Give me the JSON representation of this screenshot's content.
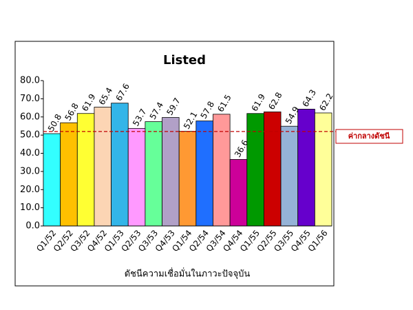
{
  "chart_data": {
    "type": "bar",
    "title": "Listed",
    "x_label": "ดัชนีความเชื่อมั่นในภาวะปัจจุบัน",
    "categories": [
      "Q1/52",
      "Q2/52",
      "Q3/52",
      "Q4/52",
      "Q1/53",
      "Q2/53",
      "Q3/53",
      "Q4/53",
      "Q1/54",
      "Q2/54",
      "Q3/54",
      "Q4/54",
      "Q1/55",
      "Q2/55",
      "Q3/55",
      "Q4/55",
      "Q1/56"
    ],
    "values": [
      50.8,
      56.8,
      61.9,
      65.4,
      67.6,
      53.7,
      57.4,
      59.7,
      52.1,
      57.8,
      61.5,
      36.6,
      61.9,
      62.8,
      54.9,
      64.3,
      62.2
    ],
    "colors": [
      "#33ffff",
      "#ffc000",
      "#ffff33",
      "#fcd5b4",
      "#33b5e8",
      "#ff99ff",
      "#66ff99",
      "#b1a0c7",
      "#ff9933",
      "#1f6fff",
      "#ff9999",
      "#cc0099",
      "#009900",
      "#cc0000",
      "#95b3d7",
      "#6600cc",
      "#ffff99"
    ],
    "ylim": [
      0,
      80
    ],
    "yticks": [
      {
        "value": 0,
        "label": "0.0"
      },
      {
        "value": 10,
        "label": "10.0"
      },
      {
        "value": 20,
        "label": "20.0"
      },
      {
        "value": 30,
        "label": "30.0"
      },
      {
        "value": 40,
        "label": "40.0"
      },
      {
        "value": 50,
        "label": "50.0"
      },
      {
        "value": 60,
        "label": "60.0"
      },
      {
        "value": 70,
        "label": "70.0"
      },
      {
        "value": 80,
        "label": "80.0"
      }
    ],
    "reference_line": {
      "value": 52,
      "label": "ค่ากลางดัชนี",
      "color": "#c00000"
    }
  }
}
